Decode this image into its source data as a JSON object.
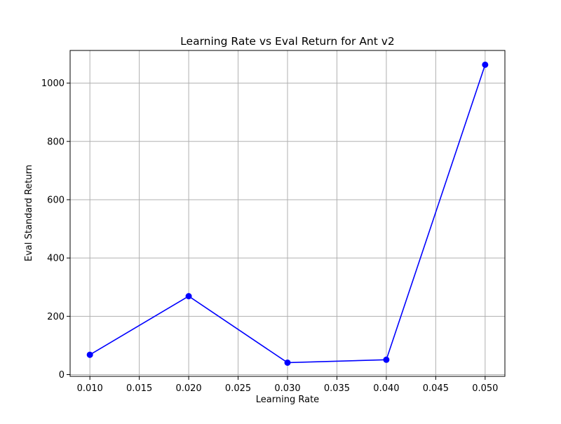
{
  "chart_data": {
    "type": "line",
    "title": "Learning Rate vs Eval Return for Ant v2",
    "xlabel": "Learning Rate",
    "ylabel": "Eval Standard Return",
    "x": [
      0.01,
      0.02,
      0.03,
      0.04,
      0.05
    ],
    "series": [
      {
        "values": [
          68,
          269,
          41,
          51,
          1063
        ],
        "color": "#0000ff",
        "marker": "circle"
      }
    ],
    "xlim": [
      0.008,
      0.052
    ],
    "ylim": [
      -6,
      1112
    ],
    "xticks": [
      0.01,
      0.015,
      0.02,
      0.025,
      0.03,
      0.035,
      0.04,
      0.045,
      0.05
    ],
    "xtick_labels": [
      "0.010",
      "0.015",
      "0.020",
      "0.025",
      "0.030",
      "0.035",
      "0.040",
      "0.045",
      "0.050"
    ],
    "yticks": [
      0,
      200,
      400,
      600,
      800,
      1000
    ],
    "ytick_labels": [
      "0",
      "200",
      "400",
      "600",
      "800",
      "1000"
    ],
    "grid": true,
    "grid_color": "#b0b0b0"
  }
}
